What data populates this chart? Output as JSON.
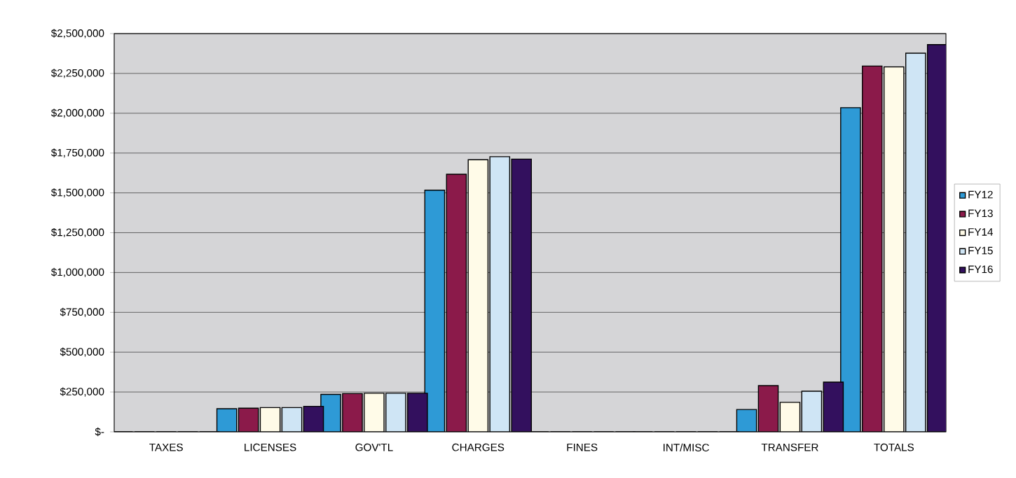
{
  "chart_data": {
    "type": "bar",
    "categories": [
      "TAXES",
      "LICENSES",
      "GOV'TL",
      "CHARGES",
      "FINES",
      "INT/MISC",
      "TRANSFER",
      "TOTALS"
    ],
    "series": [
      {
        "name": "FY12",
        "color": "#2e9ad6",
        "values": [
          0,
          145000,
          235000,
          1517000,
          0,
          0,
          140000,
          2035000
        ]
      },
      {
        "name": "FY13",
        "color": "#8b1a4a",
        "values": [
          0,
          148000,
          240000,
          1617000,
          0,
          0,
          290000,
          2296000
        ]
      },
      {
        "name": "FY14",
        "color": "#fffbe8",
        "values": [
          0,
          152000,
          242000,
          1708000,
          0,
          0,
          185000,
          2291000
        ]
      },
      {
        "name": "FY15",
        "color": "#cfe5f5",
        "values": [
          0,
          152000,
          242000,
          1727000,
          0,
          0,
          255000,
          2377000
        ]
      },
      {
        "name": "FY16",
        "color": "#33105e",
        "values": [
          0,
          160000,
          242000,
          1712000,
          0,
          0,
          312000,
          2431000
        ]
      }
    ],
    "ylim": [
      0,
      2500000
    ],
    "yticks": [
      {
        "value": 0,
        "label": "$-"
      },
      {
        "value": 250000,
        "label": "$250,000"
      },
      {
        "value": 500000,
        "label": "$500,000"
      },
      {
        "value": 750000,
        "label": "$750,000"
      },
      {
        "value": 1000000,
        "label": "$1,000,000"
      },
      {
        "value": 1250000,
        "label": "$1,250,000"
      },
      {
        "value": 1500000,
        "label": "$1,500,000"
      },
      {
        "value": 1750000,
        "label": "$1,750,000"
      },
      {
        "value": 2000000,
        "label": "$2,000,000"
      },
      {
        "value": 2250000,
        "label": "$2,250,000"
      },
      {
        "value": 2500000,
        "label": "$2,500,000"
      }
    ],
    "grid": "y",
    "legend": "right"
  }
}
